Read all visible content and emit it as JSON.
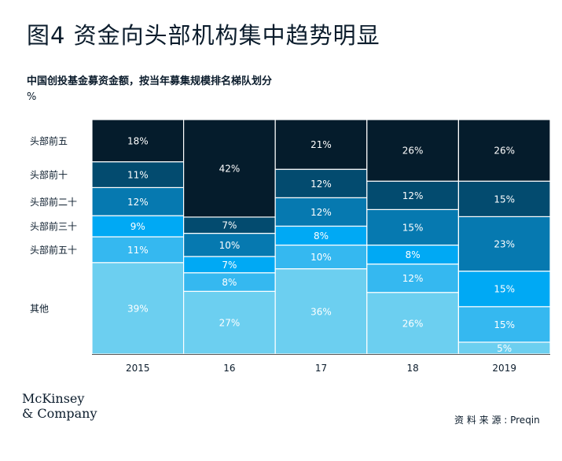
{
  "title": "图4 资金向头部机构集中趋势明显",
  "subtitle": "中国创投基金募资金额，按当年募集规模排名梯队划分",
  "unit": "%",
  "logo": {
    "line1": "McKinsey",
    "line2": "& Company"
  },
  "source": "资 料 来 源 : Preqin",
  "colors": {
    "top5": "#051c2c",
    "top10": "#034b6f",
    "top20": "#0679b0",
    "top30": "#00a9f4",
    "top50": "#35b8f0",
    "other": "#6ccff0",
    "axis": "#555555",
    "label_dark_bg": "#ffffff"
  },
  "chart_data": {
    "type": "bar",
    "stacked": true,
    "variable_width": true,
    "categories": [
      "2015",
      "16",
      "17",
      "18",
      "2019"
    ],
    "series": [
      {
        "name": "其他",
        "values": [
          39,
          27,
          36,
          26,
          5
        ]
      },
      {
        "name": "头部前五十",
        "values": [
          11,
          8,
          10,
          12,
          15
        ]
      },
      {
        "name": "头部前三十",
        "values": [
          9,
          7,
          8,
          8,
          15
        ]
      },
      {
        "name": "头部前二十",
        "values": [
          12,
          10,
          12,
          15,
          23
        ]
      },
      {
        "name": "头部前十",
        "values": [
          11,
          7,
          12,
          12,
          15
        ]
      },
      {
        "name": "头部前五",
        "values": [
          18,
          42,
          21,
          26,
          26
        ]
      }
    ],
    "ylim": [
      0,
      100
    ],
    "grid": false,
    "legend": "left"
  }
}
